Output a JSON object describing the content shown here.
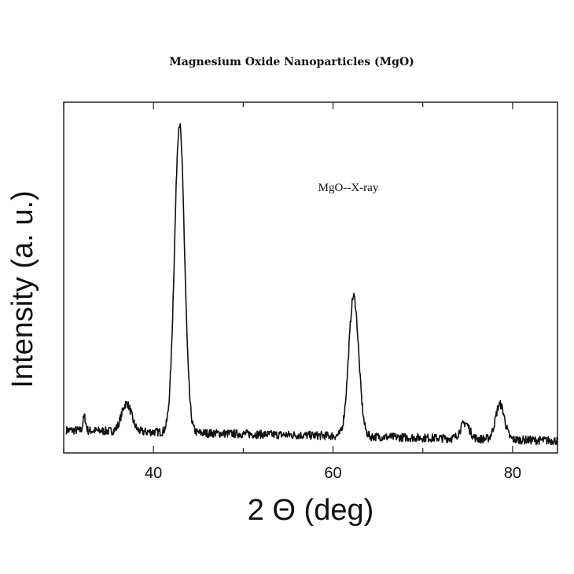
{
  "chart_data": {
    "type": "line",
    "title": "Magnesium Oxide Nanoparticles (MgO)",
    "annotation": "MgO--X-ray",
    "xlabel": "2 Θ (deg)",
    "ylabel": "Intensity (a. u.)",
    "xlim": [
      30,
      85
    ],
    "ylim": [
      0,
      100
    ],
    "xticks": [
      40,
      60,
      80
    ],
    "y_tick_labels_shown": false,
    "grid": false,
    "colors": {
      "line": "#111111",
      "axes": "#222222"
    },
    "baseline": {
      "start": 6.5,
      "end": 3.5
    },
    "peaks": [
      {
        "center": 32.3,
        "height": 4,
        "width": 0.15
      },
      {
        "center": 37.0,
        "height": 8,
        "width": 0.55
      },
      {
        "center": 42.9,
        "height": 88,
        "width": 0.55
      },
      {
        "center": 62.3,
        "height": 40,
        "width": 0.55
      },
      {
        "center": 74.7,
        "height": 4.5,
        "width": 0.5
      },
      {
        "center": 78.6,
        "height": 10,
        "width": 0.5
      }
    ],
    "noise_amplitude": 1.2
  }
}
